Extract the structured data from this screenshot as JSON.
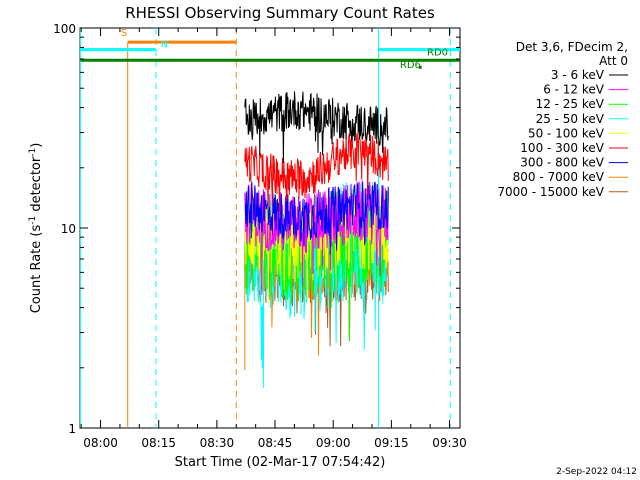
{
  "chart_data": {
    "type": "line",
    "title": "RHESSI Observing Summary Count Rates",
    "xlabel": "Start Time (02-Mar-17 07:54:42)",
    "ylabel": "Count Rate (s⁻¹ detector⁻¹)",
    "ylabel_parts": [
      "Count Rate (s",
      "-1",
      " detector",
      "-1",
      ")"
    ],
    "x_unit": "minutes since 07:54:42",
    "xlim": [
      0,
      98
    ],
    "ylim": [
      1,
      100
    ],
    "yscale": "log",
    "x_ticks": [
      {
        "label": "08:00",
        "value": 5.3
      },
      {
        "label": "08:15",
        "value": 20.3
      },
      {
        "label": "08:30",
        "value": 35.3
      },
      {
        "label": "08:45",
        "value": 50.3
      },
      {
        "label": "09:00",
        "value": 65.3
      },
      {
        "label": "09:15",
        "value": 80.3
      },
      {
        "label": "09:30",
        "value": 95.3
      }
    ],
    "y_ticks": [
      {
        "label": "1",
        "value": 1
      },
      {
        "label": "10",
        "value": 10
      },
      {
        "label": "100",
        "value": 100
      }
    ],
    "legend": {
      "position": "right",
      "header": [
        "Det 3,6, FDecim 2,",
        "Att 0"
      ]
    },
    "series": [
      {
        "name": "3 - 6 keV",
        "color": "#000000",
        "x_range": [
          42.5,
          79.5
        ],
        "level": 35,
        "trend": [
          0,
          0.02,
          0.05,
          0.03,
          0.0,
          -0.02,
          -0.04
        ],
        "noise": 0.1
      },
      {
        "name": "6 - 12 keV",
        "color": "#ff00ff",
        "x_range": [
          42.5,
          79.5
        ],
        "level": 11,
        "trend": [
          0.04,
          0.0,
          -0.03,
          -0.01,
          0.02,
          0.04,
          0.02
        ],
        "noise": 0.16
      },
      {
        "name": "12 - 25 keV",
        "color": "#00ff00",
        "x_range": [
          42.5,
          79.5
        ],
        "level": 8.5,
        "trend": [
          0.02,
          -0.02,
          -0.05,
          -0.02,
          0.02,
          0.04,
          0.03
        ],
        "noise": 0.26
      },
      {
        "name": "25 - 50 keV",
        "color": "#00ffff",
        "x_range": [
          42.5,
          79.5
        ],
        "level": 8,
        "trend": [
          0.03,
          -0.02,
          -0.06,
          -0.03,
          0.02,
          0.05,
          0.03
        ],
        "noise": 0.3
      },
      {
        "name": "50 - 100 keV",
        "color": "#ffff00",
        "x_range": [
          42.5,
          79.5
        ],
        "level": 9,
        "trend": [
          0.03,
          -0.01,
          -0.04,
          -0.02,
          0.02,
          0.04,
          0.02
        ],
        "noise": 0.2
      },
      {
        "name": "100 - 300 keV",
        "color": "#ff0000",
        "x_range": [
          42.5,
          79.5
        ],
        "level": 19,
        "trend": [
          0.06,
          0.0,
          -0.03,
          -0.01,
          0.09,
          0.12,
          0.03
        ],
        "noise": 0.1
      },
      {
        "name": "300 - 800 keV",
        "color": "#0000ff",
        "x_range": [
          42.5,
          79.5
        ],
        "level": 12,
        "trend": [
          0.05,
          0.0,
          -0.03,
          -0.02,
          0.02,
          0.04,
          0.02
        ],
        "noise": 0.12
      },
      {
        "name": "800 - 7000 keV",
        "color": "#ff8000",
        "x_range": [
          42.5,
          79.5
        ],
        "level": 7,
        "trend": [
          0.03,
          -0.01,
          -0.03,
          -0.02,
          0.0,
          0.02,
          0.0
        ],
        "noise": 0.18
      },
      {
        "name": "7000 - 15000 keV",
        "color": "#a06020",
        "x_range": [
          42.5,
          79.5
        ],
        "level": 6,
        "trend": [
          0.02,
          -0.01,
          -0.03,
          -0.02,
          0.0,
          0.01,
          0.0
        ],
        "noise": 0.15
      }
    ],
    "event_lines": [
      {
        "x": 0.1,
        "color": "#00ffff",
        "style": "solid"
      },
      {
        "x": 12.3,
        "color": "#ff8000",
        "style": "solid",
        "y_top": 85
      },
      {
        "x": 19.6,
        "color": "#00ffff",
        "style": "dashed"
      },
      {
        "x": 40.3,
        "color": "#ff8000",
        "style": "dashed"
      },
      {
        "x": 77.0,
        "color": "#00ffff",
        "style": "solid"
      },
      {
        "x": 95.5,
        "color": "#00ffff",
        "style": "dashed"
      }
    ],
    "bars": [
      {
        "label": "S",
        "color": "#ff8000",
        "x_start": 12.3,
        "x_end": 40.3,
        "y": 85,
        "label_x": 10.5,
        "label_y": 91
      },
      {
        "label": "N",
        "color": "#00ffff",
        "x_start": 0.1,
        "x_end": 19.6,
        "y": 78,
        "label_x": 20.8,
        "label_y": 80
      },
      {
        "label": "N",
        "color": "#00ffff",
        "x_start": 77.0,
        "x_end": 98,
        "y": 78
      },
      {
        "label": "RD0",
        "color": "#008000",
        "x_start": 88.0,
        "x_end": 88.0,
        "y": 72,
        "label_x": 89.5,
        "label_y": 73
      },
      {
        "label": "RD6",
        "color": "#008000",
        "x_start": 0.1,
        "x_end": 98,
        "y": 69,
        "label_x": 82.5,
        "label_y": 63,
        "marker_x": 87.6,
        "marker_y": 64
      }
    ],
    "spike": {
      "color": "#ff8000",
      "x": 42.5,
      "y_low": 1.95,
      "y_high": 7.5
    }
  },
  "footer": {
    "date": "2-Sep-2022 04:12"
  }
}
